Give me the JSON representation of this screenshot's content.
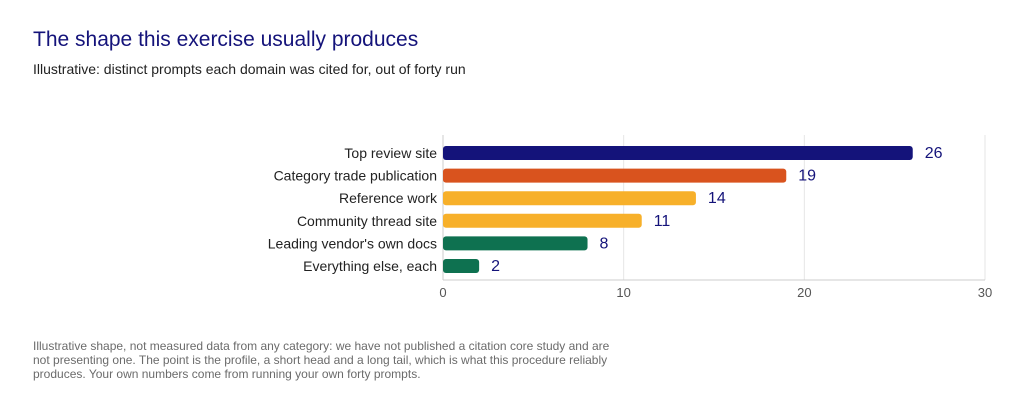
{
  "header": {
    "title": "The shape this exercise usually produces",
    "subtitle": "Illustrative: distinct prompts each domain was cited for, out of forty run"
  },
  "footnote": "Illustrative shape, not measured data from any category: we have not published a citation core study and are not presenting one. The point is the profile, a short head and a long tail, which is what this procedure reliably produces. Your own numbers come from running your own forty prompts.",
  "chart_data": {
    "type": "bar",
    "orientation": "horizontal",
    "categories": [
      "Top review site",
      "Category trade publication",
      "Reference work",
      "Community thread site",
      "Leading vendor's own docs",
      "Everything else, each"
    ],
    "values": [
      26,
      19,
      14,
      11,
      8,
      2
    ],
    "colors": [
      "#14137a",
      "#d9531e",
      "#f7b02a",
      "#f7b02a",
      "#0e7150",
      "#0e7150"
    ],
    "xlim": [
      0,
      30
    ],
    "xticks": [
      0,
      10,
      20,
      30
    ],
    "grid": true,
    "title": "",
    "xlabel": "",
    "ylabel": ""
  }
}
